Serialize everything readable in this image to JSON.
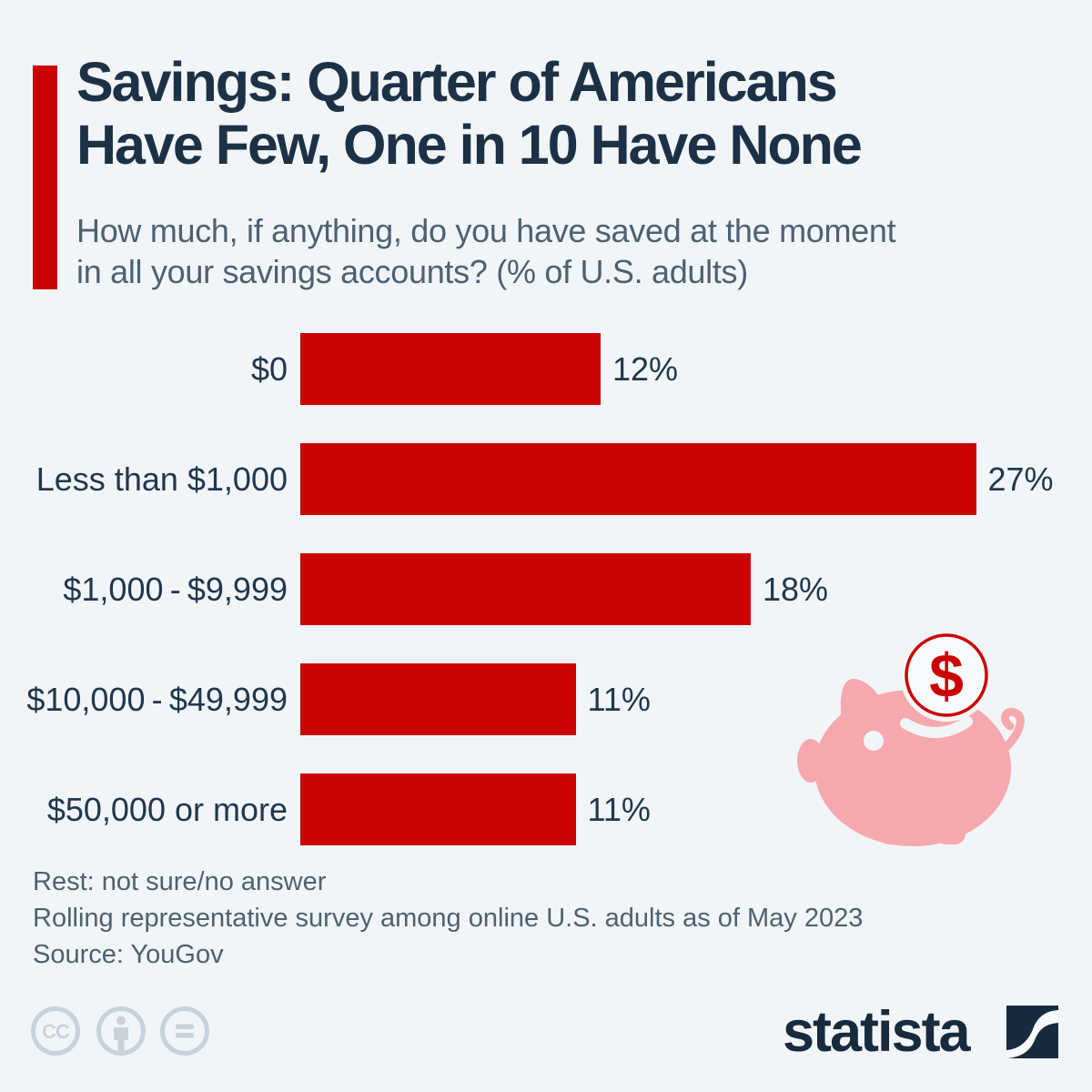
{
  "colors": {
    "background": "#F2F5F8",
    "accent_red": "#CC0303",
    "title_navy": "#1D3146",
    "label_navy": "#20374E",
    "muted_blue": "#4D6172",
    "license_icon_gray": "#C9D1D9",
    "pig_pink": "#F5A8AD",
    "logo_navy": "#182A3D"
  },
  "header": {
    "title_lines": [
      "Savings: Quarter of Americans",
      "Have Few, One in 10 Have None"
    ],
    "subtitle_lines": [
      "How much, if anything, do you have saved at the moment",
      "in all your savings accounts? (% of U.S. adults)"
    ]
  },
  "chart_data": {
    "type": "bar",
    "orientation": "horizontal",
    "title": "Savings: Quarter of Americans Have Few, One in 10 Have None",
    "subtitle": "How much, if anything, do you have saved at the moment in all your savings accounts? (% of U.S. adults)",
    "unit": "%",
    "categories": [
      "$0",
      "Less than $1,000",
      "$1,000 - $9,999",
      "$10,000 - $49,999",
      "$50,000 or more"
    ],
    "values": [
      12,
      27,
      18,
      11,
      11
    ],
    "value_labels": [
      "12%",
      "27%",
      "18%",
      "11%",
      "11%"
    ],
    "bar_color": "#CC0303",
    "xlim": [
      0,
      27
    ],
    "grid": false,
    "legend": false
  },
  "decorations": {
    "coin_symbol": "$",
    "license_icons": [
      "cc-icon",
      "attribution-person-icon",
      "equals-nd-icon"
    ]
  },
  "footnotes": {
    "line1": "Rest: not sure/no answer",
    "line2": "Rolling representative survey among online U.S. adults as of May 2023",
    "source": "Source: YouGov"
  },
  "branding": {
    "logo_text": "statista"
  }
}
